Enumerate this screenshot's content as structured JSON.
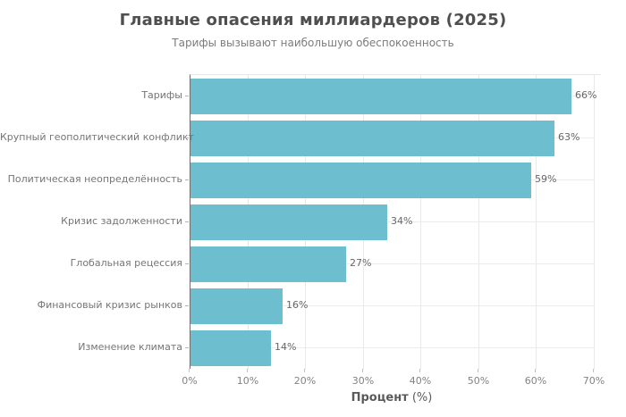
{
  "chart_data": {
    "type": "bar",
    "orientation": "horizontal",
    "title": "Главные опасения миллиардеров (2025)",
    "subtitle": "Тарифы вызывают наибольшую обеспокоенность",
    "categories": [
      "Тарифы",
      "Крупный геополитический конфликт",
      "Политическая неопределённость",
      "Кризис задолженности",
      "Глобальная рецессия",
      "Финансовый кризис рынков",
      "Изменение климата"
    ],
    "values": [
      66,
      63,
      59,
      34,
      27,
      16,
      14
    ],
    "value_labels": [
      "66%",
      "63%",
      "59%",
      "34%",
      "27%",
      "16%",
      "14%"
    ],
    "xlabel_bold": "Процент",
    "xlabel_unit": "(%)",
    "xlim": [
      0,
      70
    ],
    "xtick_values": [
      0,
      10,
      20,
      30,
      40,
      50,
      60,
      70
    ],
    "xtick_labels": [
      "0%",
      "10%",
      "20%",
      "30%",
      "40%",
      "50%",
      "60%",
      "70%"
    ],
    "grid": "both",
    "legend": "none",
    "bar_color": "#6dbfd0"
  }
}
